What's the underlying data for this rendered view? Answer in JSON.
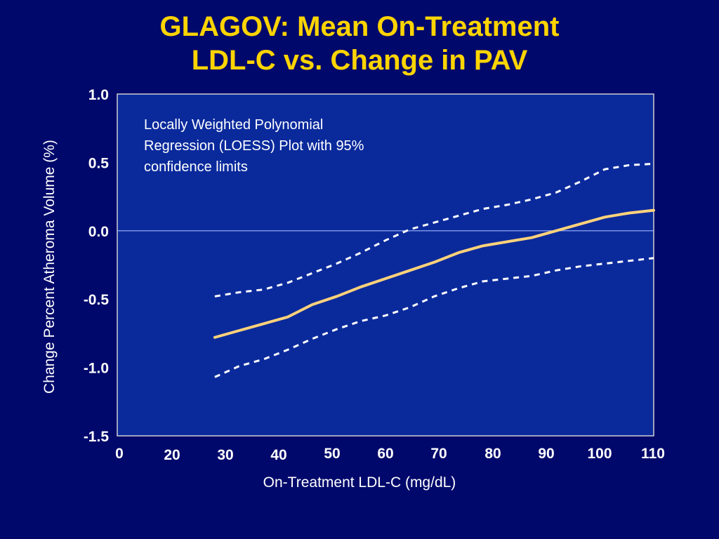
{
  "title_line1": "GLAGOV: Mean On-Treatment",
  "title_line2": "LDL-C vs. Change in PAV",
  "colors": {
    "background": "#00086b",
    "plot_area": "#0a2a9c",
    "title": "#ffd400",
    "curve": "#ffd27a",
    "confidence": "#ffffff",
    "text": "#ffffff"
  },
  "chart_data": {
    "type": "line",
    "xlabel": "On-Treatment LDL-C (mg/dL)",
    "ylabel": "Change Percent Atheroma Volume (%)",
    "xlim": [
      0,
      110
    ],
    "ylim": [
      -1.5,
      1.0
    ],
    "x_tick_labels": [
      "0",
      "20",
      "30",
      "40",
      "50",
      "60",
      "70",
      "80",
      "90",
      "100",
      "110"
    ],
    "y_tick_labels": [
      "1.0",
      "0.5",
      "0.0",
      "-0.5",
      "-1.0",
      "-1.5"
    ],
    "y_tick_values": [
      1.0,
      0.5,
      0.0,
      -0.5,
      -1.0,
      -1.5
    ],
    "reference_line_y": 0.0,
    "annotation": [
      "Locally Weighted Polynomial",
      "Regression (LOESS) Plot with 95%",
      "confidence limits"
    ],
    "series": [
      {
        "role": "loess-fit",
        "style": "solid",
        "x": [
          20,
          25,
          30,
          35,
          40,
          45,
          50,
          55,
          60,
          65,
          70,
          75,
          80,
          85,
          90,
          95,
          100,
          105,
          110
        ],
        "y": [
          -0.78,
          -0.73,
          -0.68,
          -0.63,
          -0.54,
          -0.48,
          -0.41,
          -0.35,
          -0.29,
          -0.23,
          -0.16,
          -0.11,
          -0.08,
          -0.05,
          0.0,
          0.05,
          0.1,
          0.13,
          0.15
        ]
      },
      {
        "role": "upper-95-confidence-limit",
        "style": "dashed",
        "x": [
          20,
          25,
          30,
          35,
          40,
          45,
          50,
          55,
          60,
          65,
          70,
          75,
          80,
          85,
          90,
          95,
          100,
          105,
          110
        ],
        "y": [
          -0.48,
          -0.45,
          -0.43,
          -0.38,
          -0.31,
          -0.24,
          -0.16,
          -0.07,
          0.01,
          0.06,
          0.11,
          0.16,
          0.19,
          0.23,
          0.28,
          0.36,
          0.45,
          0.48,
          0.49
        ]
      },
      {
        "role": "lower-95-confidence-limit",
        "style": "dashed",
        "x": [
          20,
          25,
          30,
          35,
          40,
          45,
          50,
          55,
          60,
          65,
          70,
          75,
          80,
          85,
          90,
          95,
          100,
          105,
          110
        ],
        "y": [
          -1.07,
          -0.99,
          -0.94,
          -0.87,
          -0.79,
          -0.72,
          -0.66,
          -0.62,
          -0.56,
          -0.48,
          -0.42,
          -0.37,
          -0.35,
          -0.33,
          -0.29,
          -0.26,
          -0.24,
          -0.22,
          -0.2
        ]
      }
    ]
  }
}
